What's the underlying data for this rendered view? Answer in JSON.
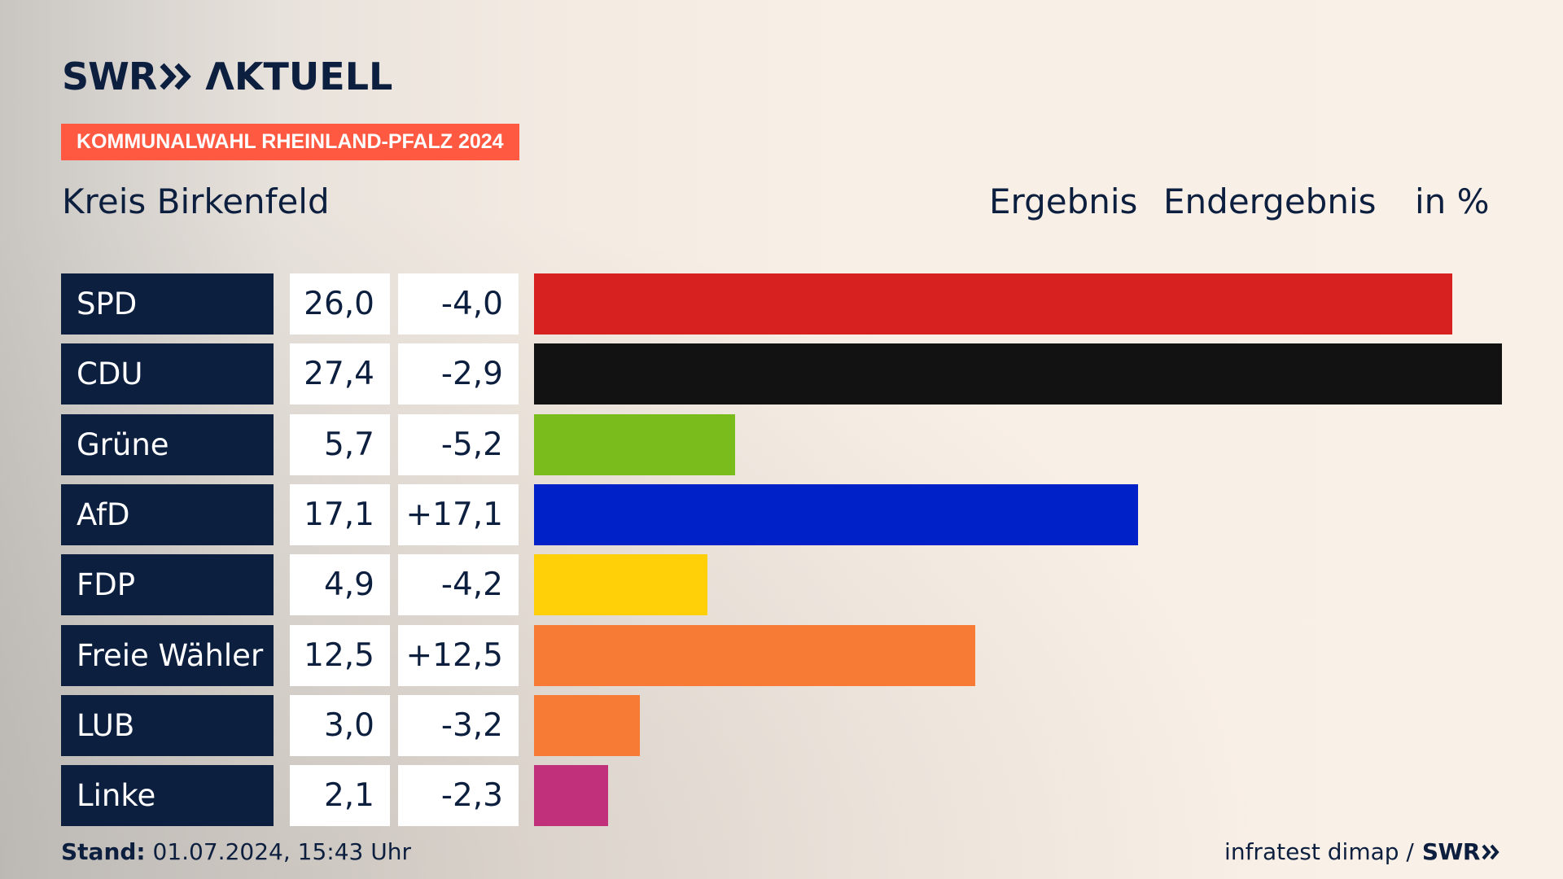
{
  "logo": {
    "swr": "SWR",
    "chevrons_icon": "double-chevron-right-icon",
    "aktuell": "ΛKTUELL"
  },
  "tag": {
    "label": "KOMMUNALWAHL RHEINLAND-PFALZ 2024",
    "color": "#ff5a41"
  },
  "header": {
    "district": "Kreis Birkenfeld",
    "col_result": "Ergebnis",
    "col_final": "Endergebnis",
    "col_unit": "in %"
  },
  "footer": {
    "stand_label": "Stand:",
    "stand_value": " 01.07.2024, 15:43 Uhr",
    "source": "infratest dimap /",
    "source_brand": "SWR"
  },
  "colors": {
    "navy": "#0d1f3f",
    "background": "#f9f0e7"
  },
  "chart_data": {
    "type": "bar",
    "orientation": "horizontal",
    "categories": [
      "SPD",
      "CDU",
      "Grüne",
      "AfD",
      "FDP",
      "Freie Wähler",
      "LUB",
      "Linke"
    ],
    "values": [
      26.0,
      27.4,
      5.7,
      17.1,
      4.9,
      12.5,
      3.0,
      2.1
    ],
    "value_labels": [
      "26,0",
      "27,4",
      "5,7",
      "17,1",
      "4,9",
      "12,5",
      "3,0",
      "2,1"
    ],
    "diff_labels": [
      "-4,0",
      "-2,9",
      "-5,2",
      "+17,1",
      "-4,2",
      "+12,5",
      "-3,2",
      "-2,3"
    ],
    "diffs": [
      -4.0,
      -2.9,
      -5.2,
      17.1,
      -4.2,
      12.5,
      -3.2,
      -2.3
    ],
    "colors": [
      "#d72020",
      "#121212",
      "#79bc1c",
      "#0020c8",
      "#ffd008",
      "#f77b34",
      "#f77b34",
      "#c1307a"
    ],
    "xlim": [
      0,
      27.4
    ],
    "grid": false,
    "legend": "none"
  }
}
